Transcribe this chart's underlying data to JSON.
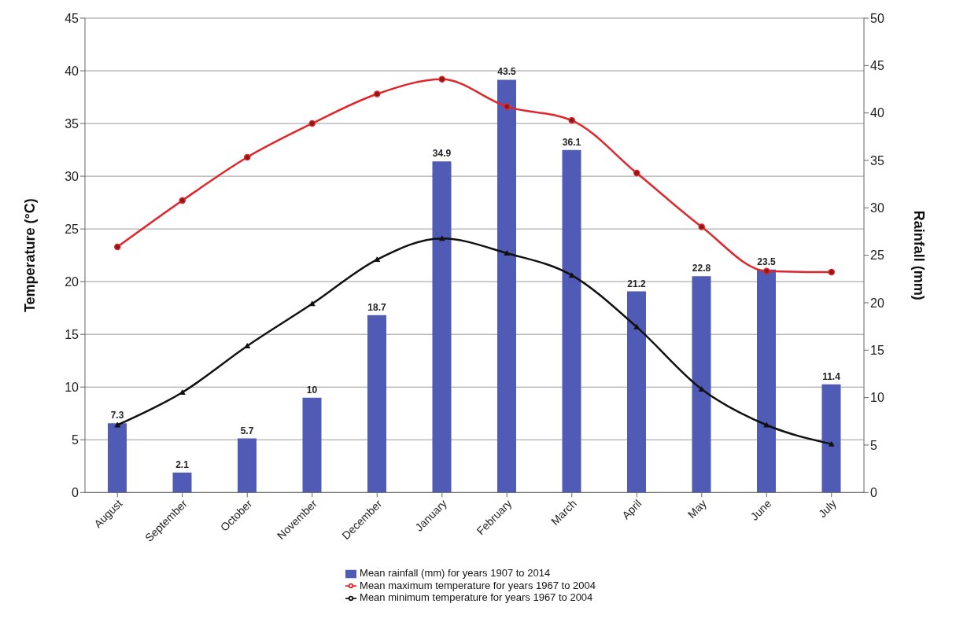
{
  "chart_data": {
    "type": "bar",
    "categories": [
      "August",
      "September",
      "October",
      "November",
      "December",
      "January",
      "February",
      "March",
      "April",
      "May",
      "June",
      "July"
    ],
    "series": [
      {
        "name": "Mean rainfall (mm) for years 1907 to 2014",
        "axis": "y2",
        "color": "#4f5bb5",
        "values": [
          7.3,
          2.1,
          5.7,
          10,
          18.7,
          34.9,
          43.5,
          36.1,
          21.2,
          22.8,
          23.5,
          11.4
        ],
        "value_labels": [
          "7.3",
          "2.1",
          "5.7",
          "10",
          "18.7",
          "34.9",
          "43.5",
          "36.1",
          "21.2",
          "22.8",
          "23.5",
          "11.4"
        ]
      },
      {
        "name": "Mean maximum temperature for years 1967 to 2004",
        "type": "line",
        "marker": "circle",
        "color": "#e0262a",
        "values": [
          23.3,
          27.7,
          31.8,
          35.0,
          37.8,
          39.2,
          36.6,
          35.3,
          30.3,
          25.2,
          21.0,
          20.9
        ]
      },
      {
        "name": "Mean minimum temperature for years 1967 to 2004",
        "type": "line",
        "marker": "triangle",
        "color": "#111111",
        "values": [
          6.4,
          9.5,
          13.9,
          17.9,
          22.1,
          24.1,
          22.7,
          20.6,
          15.7,
          9.8,
          6.4,
          4.6
        ]
      }
    ],
    "ylabel": "Temperature (°C)",
    "y2label": "Rainfall (mm)",
    "ylim": [
      0,
      45
    ],
    "yticks": [
      0,
      5,
      10,
      15,
      20,
      25,
      30,
      35,
      40,
      45
    ],
    "y2lim": [
      0,
      50
    ],
    "y2ticks": [
      0,
      5,
      10,
      15,
      20,
      25,
      30,
      35,
      40,
      45,
      50
    ],
    "grid": "y",
    "legend": "bottom"
  }
}
